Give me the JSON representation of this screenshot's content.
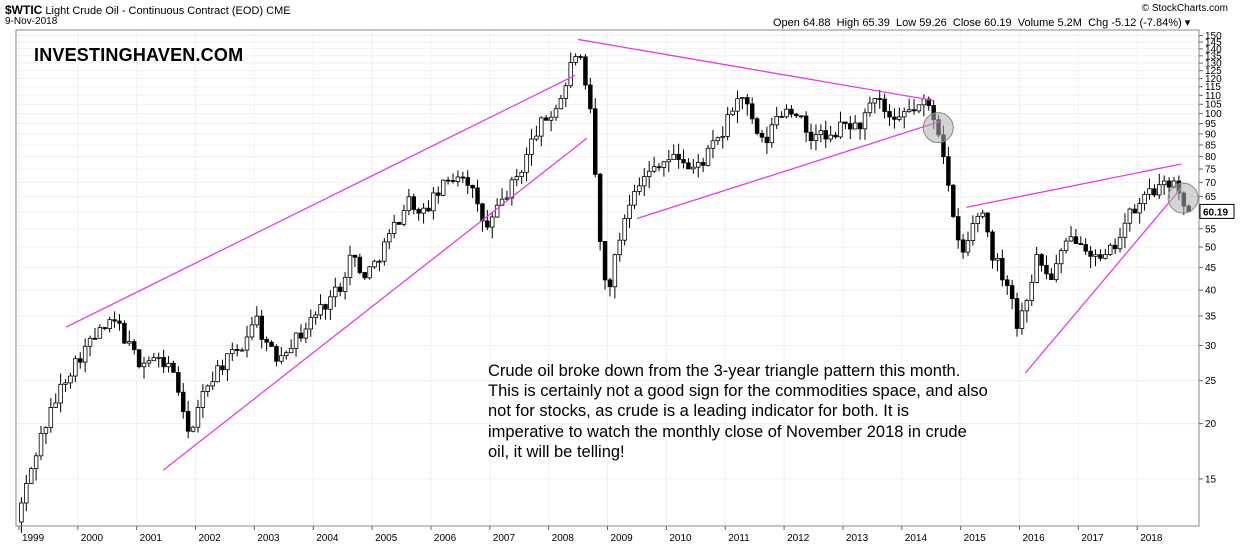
{
  "header": {
    "symbol": "$WTIC",
    "name": "Light Crude Oil - Continuous Contract (EOD)",
    "exchange": "CME",
    "date": "9-Nov-2018",
    "source": "© StockCharts.com",
    "open_label": "Open",
    "open": "64.88",
    "high_label": "High",
    "high": "65.39",
    "low_label": "Low",
    "low": "59.26",
    "close_label": "Close",
    "close": "60.19",
    "volume_label": "Volume",
    "volume": "5.2M",
    "chg_label": "Chg",
    "chg": "-5.12 (-7.84%)"
  },
  "brand": "INVESTINGHAVEN.COM",
  "annotation": "Crude oil broke down from the 3-year triangle pattern this month. This is certainly not a good sign for the commodities space, and also not for stocks, as crude is a leading indicator for both. It is imperative to watch the monthly close of November 2018 in crude oil, it will be telling!",
  "colors": {
    "trendline": "#e040e0",
    "candle_up": "#ffffff",
    "candle_down": "#000000",
    "highlight_circle": "#b0b0b0",
    "last_price_box": "#000000"
  },
  "chart_data": {
    "type": "candlestick",
    "interval": "monthly",
    "y_scale": "log",
    "ylim": [
      12,
      152
    ],
    "xlim": [
      1998.95,
      2019.05
    ],
    "x_tick_labels": [
      "1999",
      "2000",
      "2001",
      "2002",
      "2003",
      "2004",
      "2005",
      "2006",
      "2007",
      "2008",
      "2009",
      "2010",
      "2011",
      "2012",
      "2013",
      "2014",
      "2015",
      "2016",
      "2017",
      "2018"
    ],
    "y_tick_labels": [
      15,
      20,
      25,
      30,
      35,
      40,
      45,
      50,
      55,
      60,
      65,
      70,
      75,
      80,
      85,
      90,
      95,
      100,
      105,
      110,
      115,
      120,
      125,
      130,
      135,
      140,
      145,
      150
    ],
    "last_price": "60.19",
    "price_path": [
      [
        1999.0,
        12.0
      ],
      [
        1999.2,
        15.0
      ],
      [
        1999.4,
        18.5
      ],
      [
        1999.6,
        21.5
      ],
      [
        1999.8,
        25.0
      ],
      [
        2000.0,
        27.5
      ],
      [
        2000.2,
        30.0
      ],
      [
        2000.45,
        32.5
      ],
      [
        2000.7,
        34.0
      ],
      [
        2000.9,
        30.0
      ],
      [
        2001.1,
        27.5
      ],
      [
        2001.3,
        28.0
      ],
      [
        2001.5,
        27.5
      ],
      [
        2001.7,
        26.0
      ],
      [
        2001.85,
        20.0
      ],
      [
        2002.0,
        19.5
      ],
      [
        2002.2,
        24.0
      ],
      [
        2002.4,
        26.5
      ],
      [
        2002.6,
        28.0
      ],
      [
        2002.85,
        30.0
      ],
      [
        2003.05,
        35.5
      ],
      [
        2003.2,
        31.0
      ],
      [
        2003.4,
        28.0
      ],
      [
        2003.6,
        30.0
      ],
      [
        2003.85,
        32.0
      ],
      [
        2004.05,
        35.0
      ],
      [
        2004.3,
        38.0
      ],
      [
        2004.5,
        41.0
      ],
      [
        2004.7,
        49.0
      ],
      [
        2004.85,
        43.0
      ],
      [
        2005.05,
        45.0
      ],
      [
        2005.3,
        52.0
      ],
      [
        2005.55,
        60.0
      ],
      [
        2005.7,
        65.0
      ],
      [
        2005.85,
        58.0
      ],
      [
        2006.0,
        62.0
      ],
      [
        2006.3,
        70.0
      ],
      [
        2006.55,
        74.0
      ],
      [
        2006.7,
        70.0
      ],
      [
        2006.85,
        60.0
      ],
      [
        2007.0,
        55.0
      ],
      [
        2007.2,
        62.0
      ],
      [
        2007.45,
        70.0
      ],
      [
        2007.6,
        76.0
      ],
      [
        2007.8,
        90.0
      ],
      [
        2007.95,
        96.0
      ],
      [
        2008.1,
        100.0
      ],
      [
        2008.3,
        112.0
      ],
      [
        2008.45,
        133.0
      ],
      [
        2008.55,
        140.0
      ],
      [
        2008.65,
        115.0
      ],
      [
        2008.75,
        100.0
      ],
      [
        2008.85,
        68.0
      ],
      [
        2008.95,
        44.0
      ],
      [
        2009.05,
        40.0
      ],
      [
        2009.2,
        49.0
      ],
      [
        2009.35,
        60.0
      ],
      [
        2009.5,
        69.0
      ],
      [
        2009.7,
        72.0
      ],
      [
        2009.9,
        78.0
      ],
      [
        2010.1,
        79.0
      ],
      [
        2010.3,
        80.0
      ],
      [
        2010.45,
        74.0
      ],
      [
        2010.65,
        78.0
      ],
      [
        2010.85,
        85.0
      ],
      [
        2011.0,
        90.0
      ],
      [
        2011.2,
        106.0
      ],
      [
        2011.35,
        110.0
      ],
      [
        2011.5,
        95.0
      ],
      [
        2011.7,
        84.0
      ],
      [
        2011.9,
        98.0
      ],
      [
        2012.1,
        103.0
      ],
      [
        2012.3,
        100.0
      ],
      [
        2012.45,
        85.0
      ],
      [
        2012.6,
        92.0
      ],
      [
        2012.8,
        86.0
      ],
      [
        2012.95,
        92.0
      ],
      [
        2013.1,
        95.0
      ],
      [
        2013.3,
        93.0
      ],
      [
        2013.5,
        103.0
      ],
      [
        2013.65,
        107.0
      ],
      [
        2013.8,
        98.0
      ],
      [
        2013.95,
        93.0
      ],
      [
        2014.1,
        101.0
      ],
      [
        2014.3,
        103.0
      ],
      [
        2014.45,
        106.0
      ],
      [
        2014.55,
        101.0
      ],
      [
        2014.65,
        94.0
      ],
      [
        2014.75,
        82.0
      ],
      [
        2014.85,
        66.0
      ],
      [
        2014.95,
        53.0
      ],
      [
        2015.1,
        48.0
      ],
      [
        2015.3,
        59.0
      ],
      [
        2015.45,
        60.0
      ],
      [
        2015.55,
        49.0
      ],
      [
        2015.7,
        45.0
      ],
      [
        2015.9,
        40.0
      ],
      [
        2016.0,
        33.0
      ],
      [
        2016.15,
        38.0
      ],
      [
        2016.35,
        48.0
      ],
      [
        2016.55,
        42.0
      ],
      [
        2016.75,
        48.0
      ],
      [
        2016.9,
        52.0
      ],
      [
        2017.05,
        53.0
      ],
      [
        2017.2,
        50.0
      ],
      [
        2017.4,
        46.0
      ],
      [
        2017.55,
        48.0
      ],
      [
        2017.7,
        52.0
      ],
      [
        2017.85,
        57.0
      ],
      [
        2017.95,
        60.0
      ],
      [
        2018.1,
        62.0
      ],
      [
        2018.25,
        68.0
      ],
      [
        2018.4,
        67.0
      ],
      [
        2018.55,
        69.0
      ],
      [
        2018.7,
        73.0
      ],
      [
        2018.75,
        65.0
      ],
      [
        2018.85,
        60.19
      ]
    ],
    "trendlines": [
      {
        "from": [
          1999.8,
          33.0
        ],
        "to": [
          2008.45,
          122.0
        ]
      },
      {
        "from": [
          2001.45,
          15.7
        ],
        "to": [
          2008.65,
          88.0
        ]
      },
      {
        "from": [
          2008.5,
          147.0
        ],
        "to": [
          2014.55,
          107.0
        ]
      },
      {
        "from": [
          2009.5,
          58.0
        ],
        "to": [
          2014.65,
          96.0
        ]
      },
      {
        "from": [
          2015.1,
          61.5
        ],
        "to": [
          2018.75,
          77.0
        ]
      },
      {
        "from": [
          2016.1,
          26.0
        ],
        "to": [
          2018.75,
          68.0
        ]
      }
    ],
    "highlights": [
      {
        "x": 2014.62,
        "y": 93.0
      },
      {
        "x": 2018.78,
        "y": 64.5
      }
    ]
  }
}
